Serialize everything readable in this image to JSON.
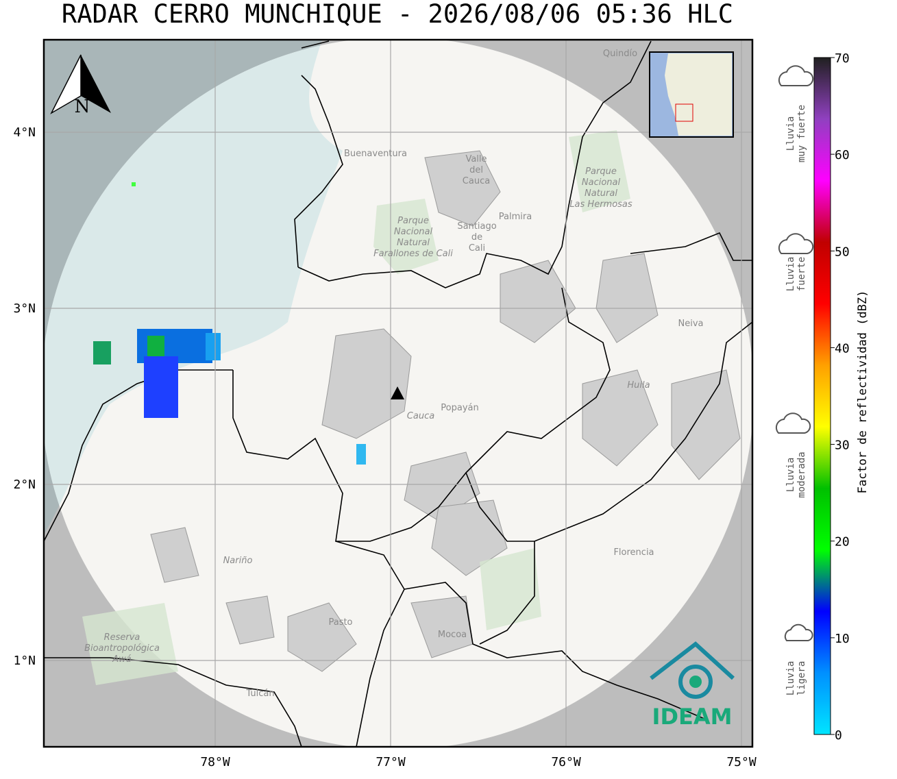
{
  "title": "RADAR CERRO MUNCHIQUE - 2026/08/06 05:36 HLC",
  "map": {
    "lonticks": [
      {
        "value": -78,
        "label": "78°W"
      },
      {
        "value": -77,
        "label": "77°W"
      },
      {
        "value": -76,
        "label": "76°W"
      },
      {
        "value": -75,
        "label": "75°W"
      }
    ],
    "latticks": [
      {
        "value": 4,
        "label": "4°N"
      },
      {
        "value": 3,
        "label": "3°N"
      },
      {
        "value": 2,
        "label": "2°N"
      },
      {
        "value": 1,
        "label": "1°N"
      }
    ],
    "grid": true,
    "north_label": "N",
    "places": [
      "Buenaventura",
      "Valle del Cauca",
      "Palmira",
      "Santiago de Cali",
      "Parque Nacional Natural Farallones de Cali",
      "Parque Nacional Natural Las Hermosas",
      "Quindío",
      "Neiva",
      "Huila",
      "Cauca",
      "Popayán",
      "Nariño",
      "Pasto",
      "Mocoa",
      "Florencia",
      "Tulcán",
      "Reserva Bioantropológica Awá"
    ],
    "logo": "IDEAM"
  },
  "colorbar": {
    "label": "Factor de reflectividad (dBZ)",
    "lim": [
      0,
      70
    ],
    "ticks": [
      0,
      10,
      20,
      30,
      40,
      50,
      60,
      70
    ],
    "colors": [
      "#00e5ff",
      "#0090ff",
      "#0000ff",
      "#00ff00",
      "#00c000",
      "#ffff00",
      "#ffa000",
      "#ff0000",
      "#c00000",
      "#ff00ff",
      "#9040c0",
      "#202020"
    ]
  },
  "rain_levels": [
    [
      "Lluvia",
      "muy fuerte"
    ],
    [
      "Lluvia",
      "fuerte"
    ],
    [
      "Lluvia",
      "moderada"
    ],
    [
      "Lluvia",
      "ligera"
    ]
  ]
}
